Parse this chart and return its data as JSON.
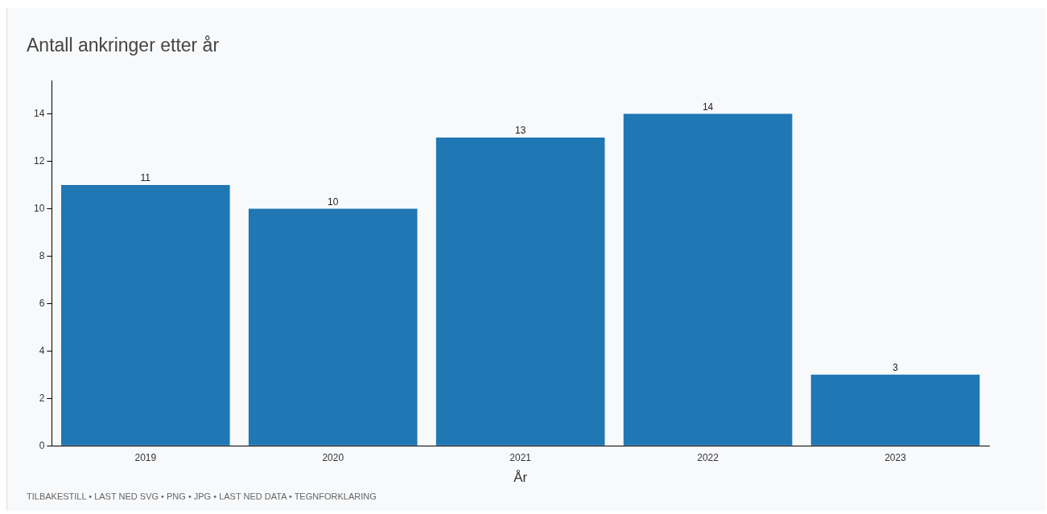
{
  "chart_data": {
    "type": "bar",
    "title": "Antall ankringer etter år",
    "xlabel": "År",
    "categories": [
      "2019",
      "2020",
      "2021",
      "2022",
      "2023"
    ],
    "values": [
      11,
      10,
      13,
      14,
      3
    ],
    "color": "#1f77b4",
    "ylim": [
      0,
      15.4
    ],
    "yticks": [
      0,
      2,
      4,
      6,
      8,
      10,
      12,
      14
    ],
    "grid": false,
    "legend": false,
    "data_labels": true,
    "annotations": [
      "TILBAKESTILL • LAST NED SVG • PNG • JPG • LAST NED DATA • TEGNFORKLARING"
    ]
  }
}
